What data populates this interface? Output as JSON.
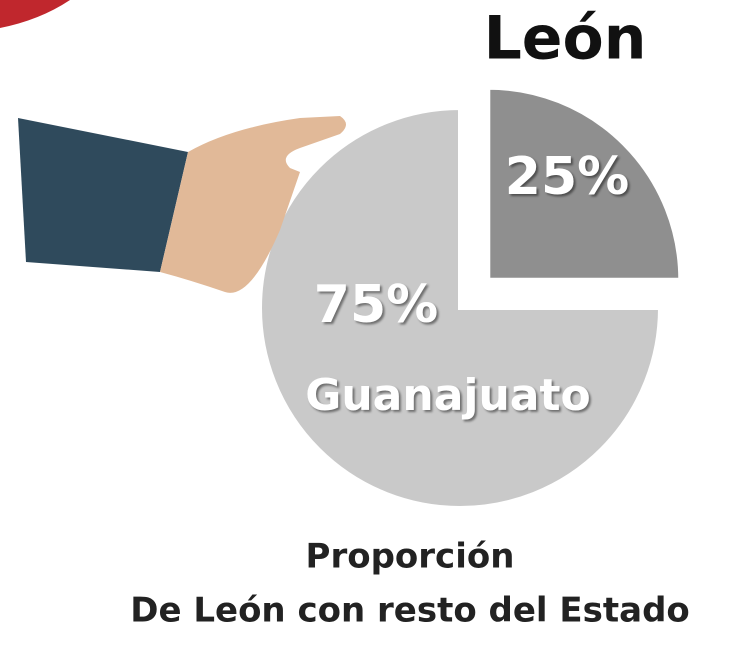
{
  "chart_data": {
    "type": "pie",
    "title": "Proporción",
    "subtitle": "De León con resto del Estado",
    "categories": [
      "León",
      "Guanajuato"
    ],
    "values": [
      25,
      75
    ],
    "value_labels": [
      "25%",
      "75%"
    ],
    "colors": [
      "#8f8f8f",
      "#c9c9c9"
    ]
  }
}
